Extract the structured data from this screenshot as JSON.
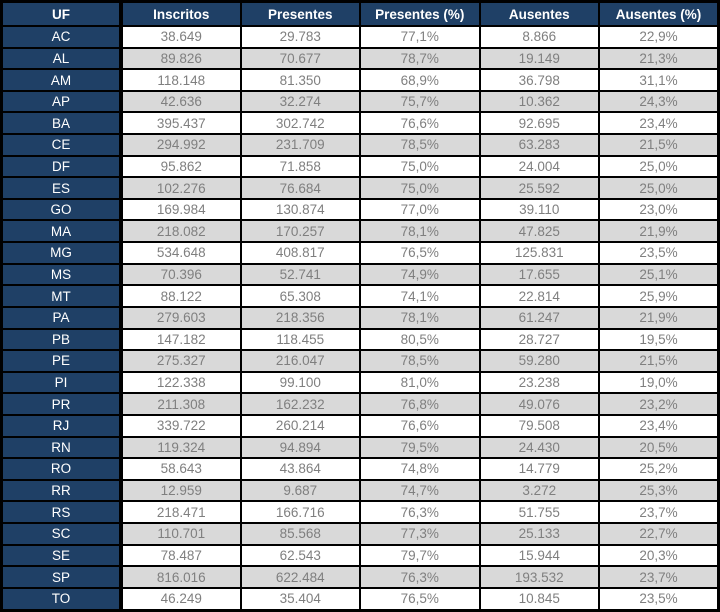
{
  "colors": {
    "header_bg": "#1F4066",
    "header_text": "#FFFFFF",
    "uf_column_bg": "#1F4066",
    "uf_column_text": "#FFFFFF",
    "row_bg": "#FFFFFF",
    "row_alt_bg": "#D9D9D9",
    "data_text": "#7F7F7F",
    "grid_border": "#000000"
  },
  "chart_data": {
    "type": "table",
    "columns": [
      "UF",
      "Inscritos",
      "Presentes",
      "Presentes (%)",
      "Ausentes",
      "Ausentes (%)"
    ],
    "rows": [
      [
        "AC",
        "38.649",
        "29.783",
        "77,1%",
        "8.866",
        "22,9%"
      ],
      [
        "AL",
        "89.826",
        "70.677",
        "78,7%",
        "19.149",
        "21,3%"
      ],
      [
        "AM",
        "118.148",
        "81.350",
        "68,9%",
        "36.798",
        "31,1%"
      ],
      [
        "AP",
        "42.636",
        "32.274",
        "75,7%",
        "10.362",
        "24,3%"
      ],
      [
        "BA",
        "395.437",
        "302.742",
        "76,6%",
        "92.695",
        "23,4%"
      ],
      [
        "CE",
        "294.992",
        "231.709",
        "78,5%",
        "63.283",
        "21,5%"
      ],
      [
        "DF",
        "95.862",
        "71.858",
        "75,0%",
        "24.004",
        "25,0%"
      ],
      [
        "ES",
        "102.276",
        "76.684",
        "75,0%",
        "25.592",
        "25,0%"
      ],
      [
        "GO",
        "169.984",
        "130.874",
        "77,0%",
        "39.110",
        "23,0%"
      ],
      [
        "MA",
        "218.082",
        "170.257",
        "78,1%",
        "47.825",
        "21,9%"
      ],
      [
        "MG",
        "534.648",
        "408.817",
        "76,5%",
        "125.831",
        "23,5%"
      ],
      [
        "MS",
        "70.396",
        "52.741",
        "74,9%",
        "17.655",
        "25,1%"
      ],
      [
        "MT",
        "88.122",
        "65.308",
        "74,1%",
        "22.814",
        "25,9%"
      ],
      [
        "PA",
        "279.603",
        "218.356",
        "78,1%",
        "61.247",
        "21,9%"
      ],
      [
        "PB",
        "147.182",
        "118.455",
        "80,5%",
        "28.727",
        "19,5%"
      ],
      [
        "PE",
        "275.327",
        "216.047",
        "78,5%",
        "59.280",
        "21,5%"
      ],
      [
        "PI",
        "122.338",
        "99.100",
        "81,0%",
        "23.238",
        "19,0%"
      ],
      [
        "PR",
        "211.308",
        "162.232",
        "76,8%",
        "49.076",
        "23,2%"
      ],
      [
        "RJ",
        "339.722",
        "260.214",
        "76,6%",
        "79.508",
        "23,4%"
      ],
      [
        "RN",
        "119.324",
        "94.894",
        "79,5%",
        "24.430",
        "20,5%"
      ],
      [
        "RO",
        "58.643",
        "43.864",
        "74,8%",
        "14.779",
        "25,2%"
      ],
      [
        "RR",
        "12.959",
        "9.687",
        "74,7%",
        "3.272",
        "25,3%"
      ],
      [
        "RS",
        "218.471",
        "166.716",
        "76,3%",
        "51.755",
        "23,7%"
      ],
      [
        "SC",
        "110.701",
        "85.568",
        "77,3%",
        "25.133",
        "22,7%"
      ],
      [
        "SE",
        "78.487",
        "62.543",
        "79,7%",
        "15.944",
        "20,3%"
      ],
      [
        "SP",
        "816.016",
        "622.484",
        "76,3%",
        "193.532",
        "23,7%"
      ],
      [
        "TO",
        "46.249",
        "35.404",
        "76,5%",
        "10.845",
        "23,5%"
      ]
    ]
  }
}
